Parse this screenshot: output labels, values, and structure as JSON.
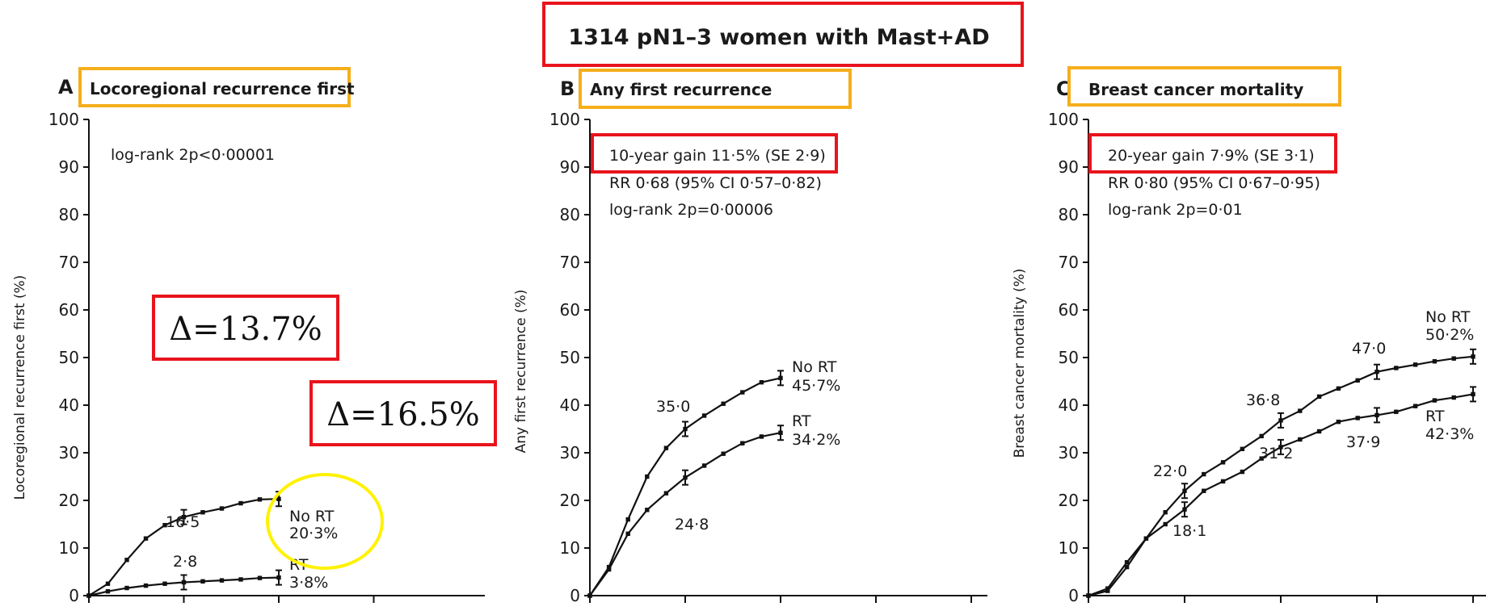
{
  "main_title": "1314 pN1–3 women with Mast+AD",
  "colors": {
    "red_box": "#e8141c",
    "orange_box": "#f5ae1b",
    "yellow_circle": "#fff200",
    "ink": "#111111"
  },
  "annotations": {
    "delta_1": "Δ=13.7%",
    "delta_2": "Δ=16.5%"
  },
  "panels": [
    {
      "letter": "A",
      "title": "Locoregional recurrence first",
      "ylabel": "Locoregional recurrence first (%)",
      "stats": [
        "log-rank 2p<0·00001"
      ],
      "label_noRT": "No RT",
      "value_noRT": "20·3%",
      "label_RT": "RT",
      "value_RT": "3·8%",
      "point_labels": [
        "16·5",
        "2·8"
      ]
    },
    {
      "letter": "B",
      "title": "Any first recurrence",
      "ylabel": "Any first recurrence (%)",
      "stats": [
        "10-year gain 11·5% (SE 2·9)",
        "RR 0·68 (95% CI 0·57–0·82)",
        "log-rank 2p=0·00006"
      ],
      "label_noRT": "No RT",
      "value_noRT": "45·7%",
      "label_RT": "RT",
      "value_RT": "34·2%",
      "point_labels": [
        "35·0",
        "24·8"
      ]
    },
    {
      "letter": "C",
      "title": "Breast cancer mortality",
      "ylabel": "Breast cancer mortality (%)",
      "stats": [
        "20-year gain 7·9% (SE 3·1)",
        "RR 0·80 (95% CI 0·67–0·95)",
        "log-rank 2p=0·01"
      ],
      "label_noRT": "No RT",
      "value_noRT": "50·2%",
      "label_RT": "RT",
      "value_RT": "42·3%",
      "point_labels": [
        "22·0",
        "36·8",
        "47·0",
        "18·1",
        "31·2",
        "37·9"
      ]
    }
  ],
  "chart_data": [
    {
      "type": "line",
      "title": "Locoregional recurrence first",
      "ylabel": "Locoregional recurrence first (%)",
      "ylim": [
        0,
        100
      ],
      "yticks": [
        0,
        10,
        20,
        30,
        40,
        50,
        60,
        70,
        80,
        90,
        100
      ],
      "xlim": [
        0,
        20
      ],
      "grid": false,
      "series": [
        {
          "name": "No RT",
          "x": [
            0,
            1,
            2,
            3,
            4,
            5,
            6,
            7,
            8,
            9,
            10
          ],
          "y": [
            0,
            2.5,
            7.5,
            12,
            14.8,
            16.5,
            17.5,
            18.3,
            19.4,
            20.2,
            20.3
          ]
        },
        {
          "name": "RT",
          "x": [
            0,
            1,
            2,
            3,
            4,
            5,
            6,
            7,
            8,
            9,
            10
          ],
          "y": [
            0,
            0.9,
            1.6,
            2.1,
            2.5,
            2.8,
            3.0,
            3.2,
            3.4,
            3.7,
            3.8
          ]
        }
      ],
      "error_bars_at_x": [
        5,
        10
      ]
    },
    {
      "type": "line",
      "title": "Any first recurrence",
      "ylabel": "Any first recurrence (%)",
      "ylim": [
        0,
        100
      ],
      "yticks": [
        0,
        10,
        20,
        30,
        40,
        50,
        60,
        70,
        80,
        90,
        100
      ],
      "xlim": [
        0,
        20
      ],
      "grid": false,
      "series": [
        {
          "name": "No RT",
          "x": [
            0,
            1,
            2,
            3,
            4,
            5,
            6,
            7,
            8,
            9,
            10
          ],
          "y": [
            0,
            6,
            16,
            25,
            31,
            35.0,
            37.8,
            40.3,
            42.7,
            44.8,
            45.7
          ]
        },
        {
          "name": "RT",
          "x": [
            0,
            1,
            2,
            3,
            4,
            5,
            6,
            7,
            8,
            9,
            10
          ],
          "y": [
            0,
            5.5,
            13,
            18,
            21.5,
            24.8,
            27.3,
            29.8,
            32,
            33.4,
            34.2
          ]
        }
      ],
      "error_bars_at_x": [
        5,
        10
      ]
    },
    {
      "type": "line",
      "title": "Breast cancer mortality",
      "ylabel": "Breast cancer mortality (%)",
      "ylim": [
        0,
        100
      ],
      "yticks": [
        0,
        10,
        20,
        30,
        40,
        50,
        60,
        70,
        80,
        90,
        100
      ],
      "xlim": [
        0,
        20
      ],
      "grid": false,
      "series": [
        {
          "name": "No RT",
          "x": [
            0,
            1,
            2,
            3,
            4,
            5,
            6,
            7,
            8,
            9,
            10,
            11,
            12,
            13,
            14,
            15,
            16,
            17,
            18,
            19,
            20
          ],
          "y": [
            0,
            1.5,
            7,
            12,
            17.5,
            22.0,
            25.5,
            28,
            30.8,
            33.5,
            36.8,
            38.8,
            41.8,
            43.5,
            45.2,
            47.0,
            47.8,
            48.5,
            49.2,
            49.8,
            50.2
          ]
        },
        {
          "name": "RT",
          "x": [
            0,
            1,
            2,
            3,
            4,
            5,
            6,
            7,
            8,
            9,
            10,
            11,
            12,
            13,
            14,
            15,
            16,
            17,
            18,
            19,
            20
          ],
          "y": [
            0,
            1,
            6,
            12,
            15,
            18.1,
            22,
            24,
            26,
            28.8,
            31.2,
            32.8,
            34.5,
            36.5,
            37.3,
            37.9,
            38.6,
            39.8,
            41,
            41.6,
            42.3
          ]
        }
      ],
      "error_bars_at_x": [
        5,
        10,
        15,
        20
      ]
    }
  ]
}
